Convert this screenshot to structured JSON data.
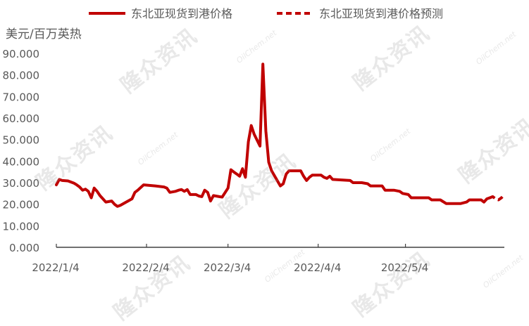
{
  "chart_data": {
    "type": "line",
    "ylabel": "美元/百万英热",
    "ylim": [
      0,
      90
    ],
    "yticks": [
      "0.000",
      "10.000",
      "20.000",
      "30.000",
      "40.000",
      "50.000",
      "60.000",
      "70.000",
      "80.000",
      "90.000"
    ],
    "xlim": [
      "2022-01-04",
      "2022-06-07"
    ],
    "xticks": [
      {
        "date": "2022-01-04",
        "label": "2022/1/4"
      },
      {
        "date": "2022-02-04",
        "label": "2022/2/4"
      },
      {
        "date": "2022-03-04",
        "label": "2022/3/4"
      },
      {
        "date": "2022-04-04",
        "label": "2022/4/4"
      },
      {
        "date": "2022-05-04",
        "label": "2022/5/4"
      }
    ],
    "grid": false,
    "legend_position": "top",
    "series": [
      {
        "name": "东北亚现货到港价格",
        "color": "#C00000",
        "style": "solid",
        "points": [
          [
            "2022-01-04",
            29.0
          ],
          [
            "2022-01-05",
            31.5
          ],
          [
            "2022-01-06",
            31.0
          ],
          [
            "2022-01-08",
            30.8
          ],
          [
            "2022-01-10",
            29.8
          ],
          [
            "2022-01-11",
            29.0
          ],
          [
            "2022-01-12",
            28.0
          ],
          [
            "2022-01-13",
            26.5
          ],
          [
            "2022-01-14",
            27.0
          ],
          [
            "2022-01-15",
            26.0
          ],
          [
            "2022-01-16",
            23.0
          ],
          [
            "2022-01-17",
            27.5
          ],
          [
            "2022-01-18",
            26.0
          ],
          [
            "2022-01-19",
            24.0
          ],
          [
            "2022-01-20",
            22.5
          ],
          [
            "2022-01-21",
            21.0
          ],
          [
            "2022-01-23",
            21.5
          ],
          [
            "2022-01-24",
            20.0
          ],
          [
            "2022-01-25",
            19.0
          ],
          [
            "2022-01-26",
            19.5
          ],
          [
            "2022-01-28",
            21.0
          ],
          [
            "2022-01-30",
            22.5
          ],
          [
            "2022-01-31",
            25.5
          ],
          [
            "2022-02-01",
            26.5
          ],
          [
            "2022-02-03",
            29.0
          ],
          [
            "2022-02-07",
            28.5
          ],
          [
            "2022-02-10",
            28.0
          ],
          [
            "2022-02-11",
            27.5
          ],
          [
            "2022-02-12",
            25.5
          ],
          [
            "2022-02-14",
            26.0
          ],
          [
            "2022-02-15",
            26.5
          ],
          [
            "2022-02-16",
            26.8
          ],
          [
            "2022-02-17",
            26.0
          ],
          [
            "2022-02-18",
            26.8
          ],
          [
            "2022-02-19",
            24.5
          ],
          [
            "2022-02-21",
            24.5
          ],
          [
            "2022-02-22",
            23.8
          ],
          [
            "2022-02-23",
            23.5
          ],
          [
            "2022-02-24",
            26.5
          ],
          [
            "2022-02-25",
            25.5
          ],
          [
            "2022-02-26",
            21.5
          ],
          [
            "2022-02-27",
            24.0
          ],
          [
            "2022-03-01",
            23.5
          ],
          [
            "2022-03-02",
            23.3
          ],
          [
            "2022-03-04",
            27.5
          ],
          [
            "2022-03-05",
            36.0
          ],
          [
            "2022-03-06",
            35.0
          ],
          [
            "2022-03-07",
            34.0
          ],
          [
            "2022-03-08",
            33.0
          ],
          [
            "2022-03-09",
            36.5
          ],
          [
            "2022-03-10",
            32.5
          ],
          [
            "2022-03-11",
            49.0
          ],
          [
            "2022-03-12",
            56.5
          ],
          [
            "2022-03-13",
            52.5
          ],
          [
            "2022-03-15",
            47.0
          ],
          [
            "2022-03-16",
            85.0
          ],
          [
            "2022-03-17",
            54.0
          ],
          [
            "2022-03-18",
            39.5
          ],
          [
            "2022-03-19",
            35.5
          ],
          [
            "2022-03-22",
            28.5
          ],
          [
            "2022-03-23",
            29.5
          ],
          [
            "2022-03-24",
            34.0
          ],
          [
            "2022-03-25",
            35.5
          ],
          [
            "2022-03-29",
            35.5
          ],
          [
            "2022-03-30",
            33.0
          ],
          [
            "2022-03-31",
            31.0
          ],
          [
            "2022-04-01",
            32.5
          ],
          [
            "2022-04-02",
            33.5
          ],
          [
            "2022-04-05",
            33.5
          ],
          [
            "2022-04-06",
            32.5
          ],
          [
            "2022-04-07",
            32.0
          ],
          [
            "2022-04-08",
            33.0
          ],
          [
            "2022-04-09",
            31.5
          ],
          [
            "2022-04-15",
            31.0
          ],
          [
            "2022-04-16",
            30.0
          ],
          [
            "2022-04-19",
            30.0
          ],
          [
            "2022-04-21",
            29.5
          ],
          [
            "2022-04-22",
            28.5
          ],
          [
            "2022-04-26",
            28.5
          ],
          [
            "2022-04-27",
            26.5
          ],
          [
            "2022-04-30",
            26.5
          ],
          [
            "2022-05-02",
            26.0
          ],
          [
            "2022-05-03",
            25.0
          ],
          [
            "2022-05-05",
            24.5
          ],
          [
            "2022-05-06",
            23.0
          ],
          [
            "2022-05-12",
            23.0
          ],
          [
            "2022-05-13",
            22.0
          ],
          [
            "2022-05-16",
            22.0
          ],
          [
            "2022-05-18",
            20.3
          ],
          [
            "2022-05-23",
            20.3
          ],
          [
            "2022-05-25",
            21.0
          ],
          [
            "2022-05-26",
            22.0
          ],
          [
            "2022-05-30",
            22.0
          ],
          [
            "2022-05-31",
            21.0
          ],
          [
            "2022-06-01",
            22.5
          ],
          [
            "2022-06-02",
            23.0
          ]
        ]
      },
      {
        "name": "东北亚现货到港价格预测",
        "color": "#C00000",
        "style": "dashed",
        "points": [
          [
            "2022-06-02",
            23.0
          ],
          [
            "2022-06-03",
            23.5
          ],
          [
            "2022-06-04",
            22.5
          ],
          [
            "2022-06-05",
            22.0
          ],
          [
            "2022-06-06",
            23.0
          ],
          [
            "2022-06-07",
            24.5
          ]
        ]
      }
    ]
  },
  "watermark": {
    "text": "隆众资讯",
    "subtext": "OilChem.net"
  }
}
